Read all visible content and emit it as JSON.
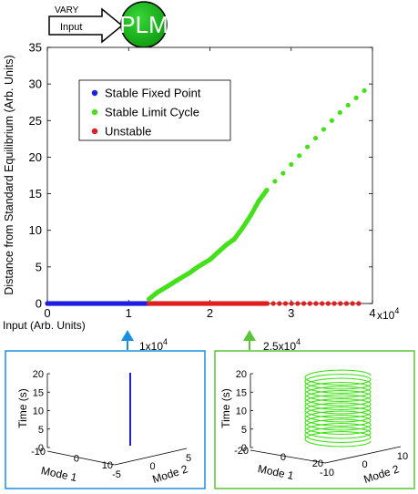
{
  "header": {
    "vary_label": "VARY",
    "input_label": "Input",
    "model_label": "PLM",
    "model_color": "#1fb31f"
  },
  "chart_data": [
    {
      "type": "scatter",
      "title": "",
      "xlabel": "Input (Arb. Units)",
      "ylabel": "Distance from Standard Equilibrium (Arb. Units)",
      "x_multiplier_label": "x10",
      "x_multiplier_exponent": "4",
      "xlim": [
        0,
        4
      ],
      "ylim": [
        0,
        35
      ],
      "xticks": [
        "0",
        "1",
        "2",
        "3",
        "4"
      ],
      "yticks": [
        "0",
        "5",
        "10",
        "15",
        "20",
        "25",
        "30",
        "35"
      ],
      "grid": false,
      "legend_position": "top-left",
      "series": [
        {
          "name": "Stable Fixed Point",
          "color": "#1f1fe0",
          "x_range": [
            0,
            1.25
          ],
          "y_constant": 0
        },
        {
          "name": "Stable Limit Cycle",
          "color": "#44e01a",
          "x": [
            1.25,
            1.35,
            1.5,
            1.6,
            1.75,
            1.85,
            2.0,
            2.1,
            2.2,
            2.3,
            2.4,
            2.5,
            2.6,
            2.7,
            2.8,
            2.9,
            3.0,
            3.1,
            3.2,
            3.3,
            3.4,
            3.5,
            3.6,
            3.7,
            3.8,
            3.9
          ],
          "y": [
            0.6,
            1.5,
            2.5,
            3.2,
            4.2,
            5.0,
            6.0,
            7.0,
            8.0,
            8.8,
            10.3,
            12.0,
            14.0,
            15.5,
            16.7,
            17.8,
            19.0,
            20.2,
            21.4,
            22.6,
            23.8,
            25.0,
            26.1,
            27.1,
            28.1,
            29.1
          ]
        },
        {
          "name": "Unstable",
          "color": "#e01f1f",
          "x_range": [
            1.25,
            3.9
          ],
          "y_constant": 0
        }
      ]
    },
    {
      "type": "line3d",
      "callout_label": "1x10",
      "callout_exponent": "4",
      "callout_x": 1.0,
      "color": "#1f1fe0",
      "zlabel": "Time (s)",
      "xlabel": "Mode 1",
      "ylabel": "Mode 2",
      "zticks": [
        "0",
        "5",
        "10",
        "15",
        "20"
      ],
      "xticks": [
        "-10",
        "0",
        "10"
      ],
      "yticks": [
        "-5",
        "0",
        "5"
      ],
      "zlim": [
        0,
        20
      ],
      "trajectory": "fixed point (vertical line)"
    },
    {
      "type": "line3d",
      "callout_label": "2.5x10",
      "callout_exponent": "4",
      "callout_x": 2.5,
      "color": "#44e01a",
      "zlabel": "Time (s)",
      "xlabel": "Mode 1",
      "ylabel": "Mode 2",
      "zticks": [
        "0",
        "5",
        "10",
        "15",
        "20"
      ],
      "xticks": [
        "-20",
        "0",
        "20"
      ],
      "yticks": [
        "-10",
        "0",
        "10"
      ],
      "zlim": [
        0,
        20
      ],
      "trajectory": "limit cycle (helix)",
      "turns": 16
    }
  ]
}
